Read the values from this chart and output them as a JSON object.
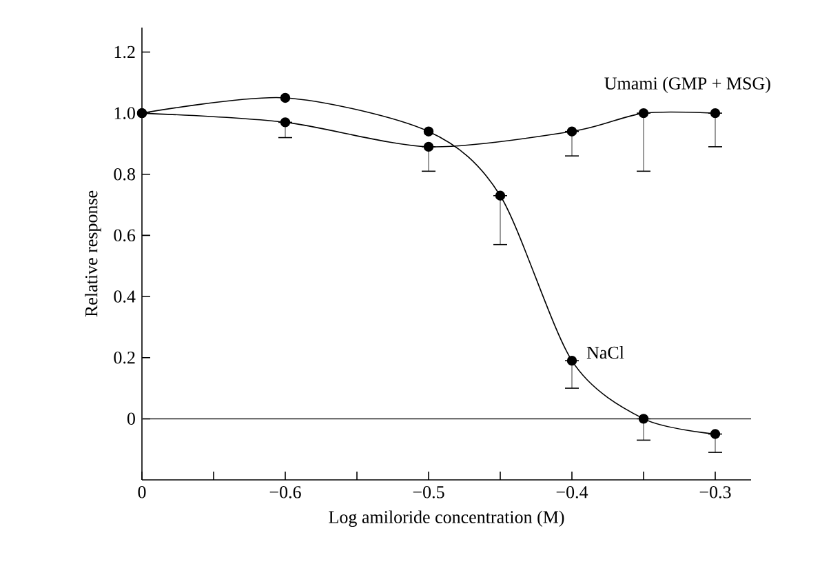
{
  "chart_data": {
    "type": "line",
    "xlabel": "Log amiloride concentration (M)",
    "ylabel": "Relative response",
    "categories": [
      "0",
      null,
      "−0.6",
      null,
      "−0.5",
      null,
      "−0.4",
      null,
      "−0.3"
    ],
    "ylim": [
      -0.2,
      1.28
    ],
    "yticks": [
      0,
      0.2,
      0.4,
      0.6,
      0.8,
      {
        "value": 1.0,
        "label": "1.0"
      },
      1.2
    ],
    "ref_lines": [
      {
        "axis": "y",
        "value": 0,
        "color": "#404040"
      }
    ],
    "marker": "circle",
    "series": [
      {
        "name": "Umami (GMP + MSG)",
        "color": "#000000",
        "values": [
          1.0,
          null,
          0.97,
          null,
          0.89,
          null,
          0.94,
          1.0,
          1.0
        ],
        "errors": [
          null,
          null,
          [
            0.92,
            0.97
          ],
          null,
          [
            0.81,
            0.89
          ],
          null,
          [
            0.86,
            0.94
          ],
          [
            0.81,
            1.0
          ],
          [
            0.89,
            1.0
          ]
        ]
      },
      {
        "name": "NaCl",
        "color": "#000000",
        "values": [
          1.0,
          null,
          1.05,
          null,
          0.94,
          0.73,
          0.19,
          0.0,
          -0.05
        ],
        "errors": [
          null,
          null,
          null,
          null,
          null,
          [
            0.57,
            0.73
          ],
          [
            0.1,
            0.19
          ],
          [
            -0.07,
            0.0
          ],
          [
            -0.11,
            -0.05
          ]
        ]
      }
    ]
  }
}
